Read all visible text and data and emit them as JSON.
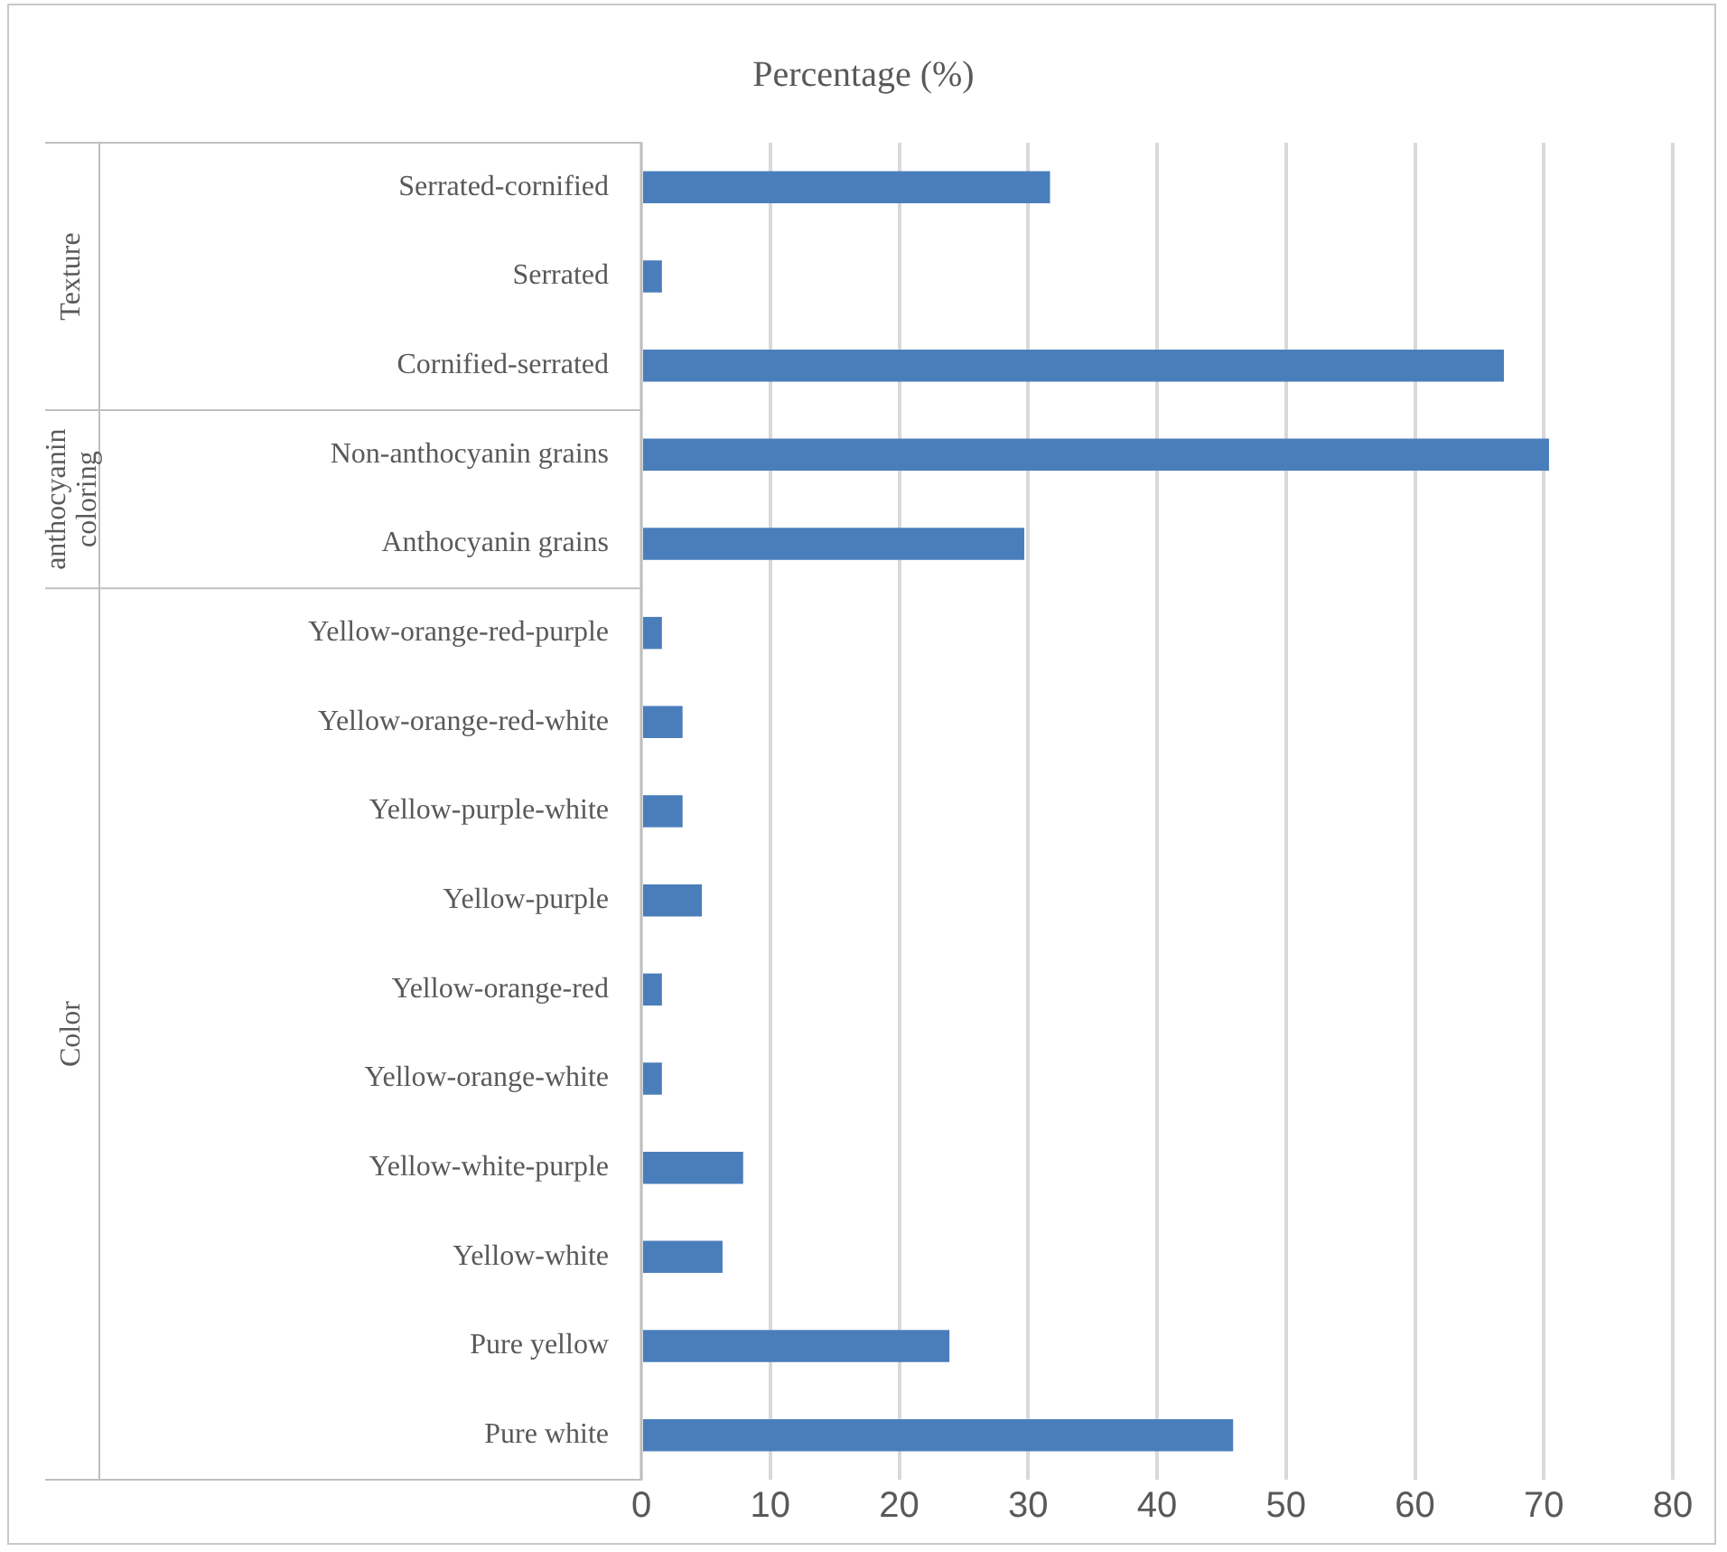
{
  "chart_data": {
    "type": "bar",
    "orientation": "horizontal",
    "title": "Percentage (%)",
    "categories": [
      "Serrated-cornified",
      "Serrated",
      "Cornified-serrated",
      "Non-anthocyanin grains",
      "Anthocyanin grains",
      "Yellow-orange-red-purple",
      "Yellow-orange-red-white",
      "Yellow-purple-white",
      "Yellow-purple",
      "Yellow-orange-red",
      "Yellow-orange-white",
      "Yellow-white-purple",
      "Yellow-white",
      "Pure yellow",
      "Pure white"
    ],
    "values": [
      31.7,
      1.6,
      66.9,
      70.4,
      29.7,
      1.6,
      3.2,
      3.2,
      4.7,
      1.6,
      1.6,
      7.9,
      6.3,
      23.9,
      45.9
    ],
    "color": "#4a7ebb",
    "xlim": [
      0,
      80
    ],
    "xticks": [
      0,
      10,
      20,
      30,
      40,
      50,
      60,
      70,
      80
    ],
    "grid": "x",
    "legend": false,
    "annotations": [
      "Texture",
      "anthocyanin coloring",
      "Color"
    ]
  }
}
